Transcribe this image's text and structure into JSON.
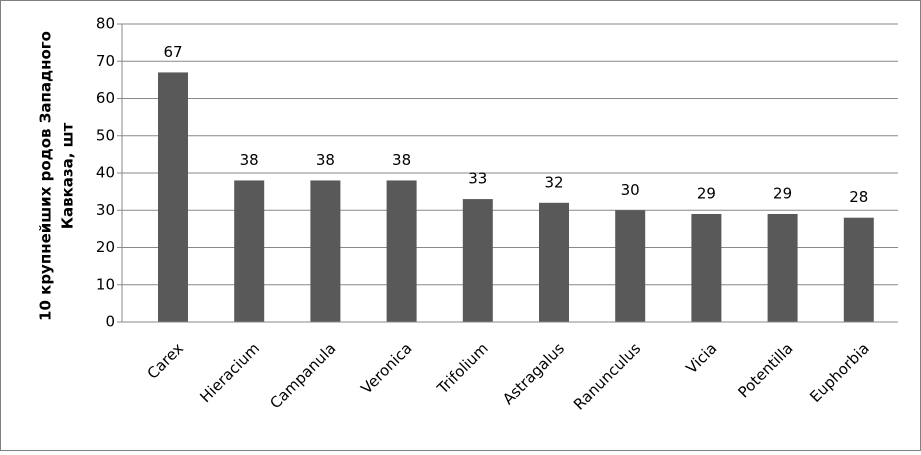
{
  "chart_data": {
    "type": "bar",
    "y_label": [
      "10 крупнейших родов Западного",
      "Кавказа, шт"
    ],
    "categories": [
      "Carex",
      "Hieracium",
      "Campanula",
      "Veronica",
      "Trifolium",
      "Astragalus",
      "Ranunculus",
      "Vicia",
      "Potentilla",
      "Euphorbia"
    ],
    "values": [
      67,
      38,
      38,
      38,
      33,
      32,
      30,
      29,
      29,
      28
    ],
    "color": "#595959",
    "ylim": [
      0,
      80
    ],
    "yticks": [
      0,
      10,
      20,
      30,
      40,
      50,
      60,
      70,
      80
    ],
    "grid": true
  }
}
